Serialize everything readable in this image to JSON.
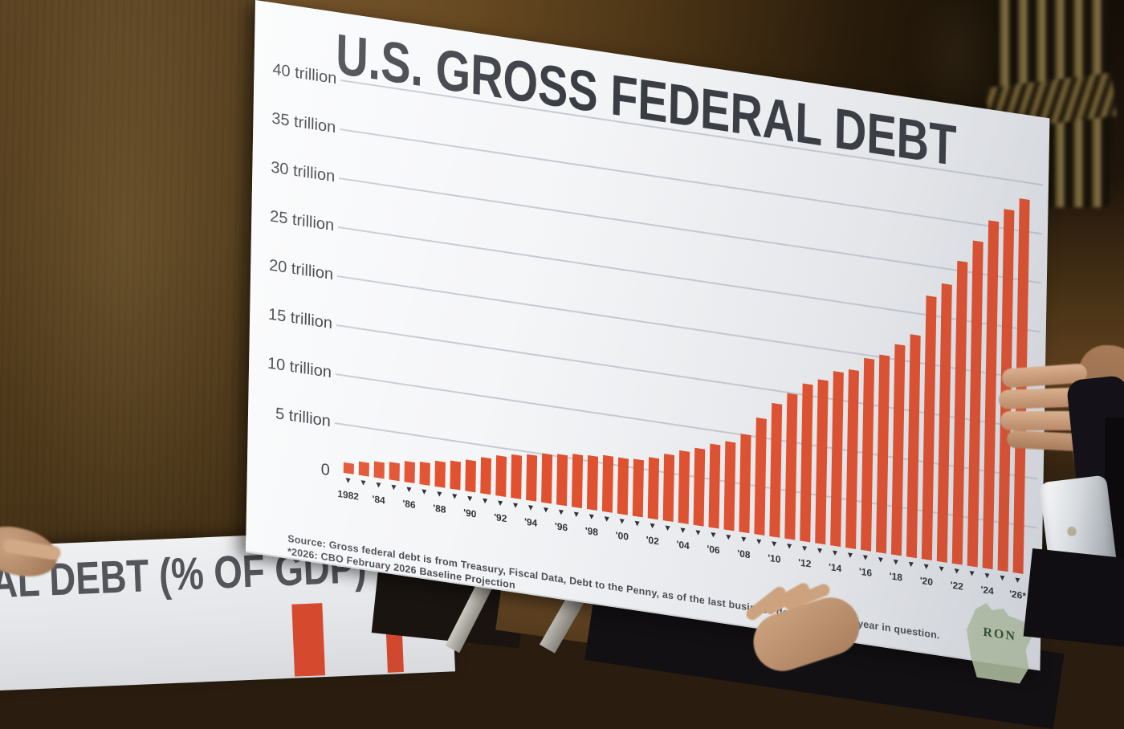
{
  "scene": {
    "description_labels": {
      "setting": "hearing-room wood paneling with gilded column, hands holding poster boards"
    }
  },
  "poster_main": {
    "title": "U.S. GROSS FEDERAL DEBT",
    "source_line1": "Source: Gross federal debt is from Treasury, Fiscal Data, Debt to the Penny, as of the last business day of the fiscal year in question.",
    "source_line2": "*2026: CBO February 2026 Baseline Projection",
    "logo_text": "RON",
    "logo_shape": "wisconsin-state-outline-green"
  },
  "poster_gdp": {
    "title_partial": "RAL DEBT (% OF GDP)"
  },
  "colors": {
    "bar": "#e2512f",
    "gridline": "#c6cad1",
    "title_text": "#3a3d43",
    "logo_green": "#b3c2a2"
  },
  "chart_data": {
    "type": "bar",
    "title": "U.S. GROSS FEDERAL DEBT",
    "xlabel": "",
    "ylabel": "trillions of dollars",
    "ylim": [
      0,
      40
    ],
    "grid": "horizontal",
    "y_ticks": [
      {
        "value": 40,
        "label": "40 trillion"
      },
      {
        "value": 35,
        "label": "35 trillion"
      },
      {
        "value": 30,
        "label": "30 trillion"
      },
      {
        "value": 25,
        "label": "25 trillion"
      },
      {
        "value": 20,
        "label": "20 trillion"
      },
      {
        "value": 15,
        "label": "15 trillion"
      },
      {
        "value": 10,
        "label": "10 trillion"
      },
      {
        "value": 5,
        "label": "5 trillion"
      },
      {
        "value": 0,
        "label": "0"
      }
    ],
    "x_tick_labels": [
      "1982",
      "'84",
      "'86",
      "'88",
      "'90",
      "'92",
      "'94",
      "'96",
      "'98",
      "'00",
      "'02",
      "'04",
      "'06",
      "'08",
      "'10",
      "'12",
      "'14",
      "'16",
      "'18",
      "'20",
      "'22",
      "'24",
      "'26*"
    ],
    "years": [
      1982,
      1983,
      1984,
      1985,
      1986,
      1987,
      1988,
      1989,
      1990,
      1991,
      1992,
      1993,
      1994,
      1995,
      1996,
      1997,
      1998,
      1999,
      2000,
      2001,
      2002,
      2003,
      2004,
      2005,
      2006,
      2007,
      2008,
      2009,
      2010,
      2011,
      2012,
      2013,
      2014,
      2015,
      2016,
      2017,
      2018,
      2019,
      2020,
      2021,
      2022,
      2023,
      2024,
      2025,
      2026
    ],
    "values": [
      1.1,
      1.4,
      1.6,
      1.8,
      2.1,
      2.3,
      2.6,
      2.9,
      3.2,
      3.7,
      4.1,
      4.4,
      4.7,
      5.0,
      5.2,
      5.4,
      5.5,
      5.7,
      5.7,
      5.8,
      6.2,
      6.8,
      7.4,
      7.9,
      8.5,
      9.0,
      10.0,
      11.9,
      13.6,
      14.8,
      16.1,
      16.7,
      17.8,
      18.2,
      19.6,
      20.2,
      21.5,
      22.7,
      26.9,
      28.4,
      30.9,
      33.2,
      35.5,
      36.9,
      38.2
    ]
  }
}
